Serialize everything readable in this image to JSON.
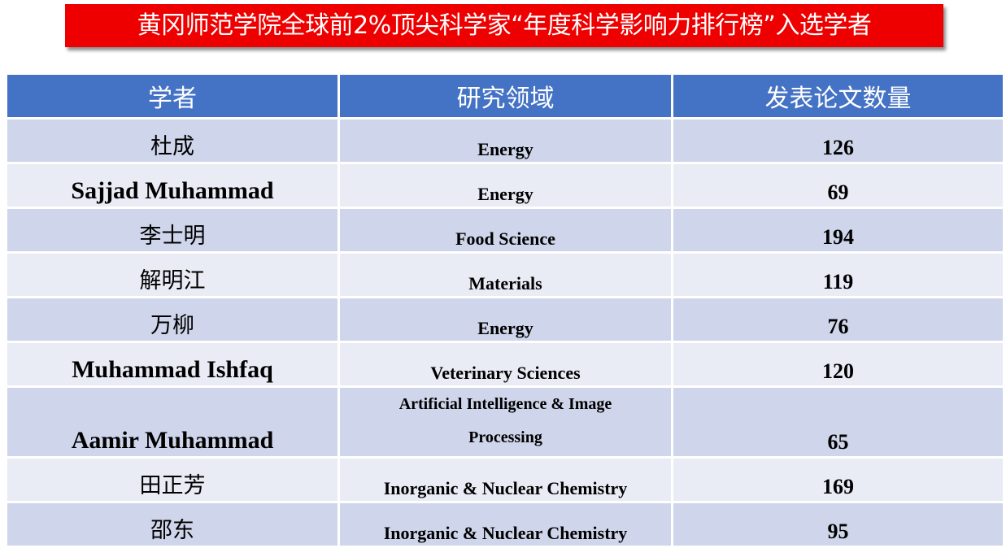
{
  "title": "黄冈师范学院全球前2%顶尖科学家“年度科学影响力排行榜”入选学者",
  "table": {
    "headers": [
      "学者",
      "研究领域",
      "发表论文数量"
    ],
    "rows": [
      {
        "name": "杜成",
        "field": "Energy",
        "count": "126"
      },
      {
        "name": "Sajjad Muhammad",
        "field": "Energy",
        "count": "69"
      },
      {
        "name": "李士明",
        "field": "Food Science",
        "count": "194"
      },
      {
        "name": "解明江",
        "field": "Materials",
        "count": "119"
      },
      {
        "name": "万柳",
        "field": "Energy",
        "count": "76"
      },
      {
        "name": "Muhammad Ishfaq",
        "field": "Veterinary Sciences",
        "count": "120"
      },
      {
        "name": "Aamir Muhammad",
        "field": "Artificial Intelligence & Image Processing",
        "count": "65"
      },
      {
        "name": "田正芳",
        "field": "Inorganic & Nuclear Chemistry",
        "count": "169"
      },
      {
        "name": "邵东",
        "field": "Inorganic & Nuclear Chemistry",
        "count": "95"
      }
    ]
  },
  "colors": {
    "title_bg": "#ee0000",
    "header_bg": "#4472c4",
    "row_dark": "#cfd5ea",
    "row_light": "#e9ebf5"
  }
}
